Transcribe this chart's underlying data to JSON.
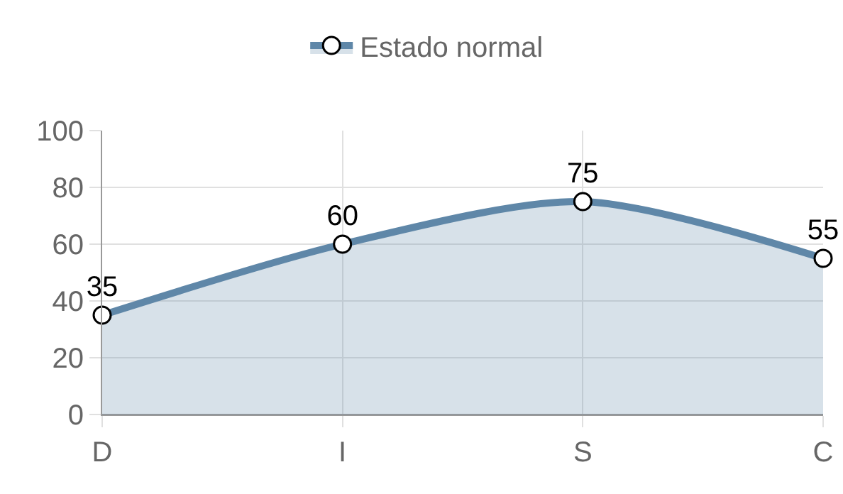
{
  "chart_data": {
    "type": "area",
    "categories": [
      "D",
      "I",
      "S",
      "C"
    ],
    "series": [
      {
        "name": "Estado normal",
        "color": "#5f87a8",
        "values": [
          35,
          60,
          75,
          55
        ]
      }
    ],
    "ylim": [
      0,
      100
    ],
    "yticks": [
      0,
      20,
      40,
      60,
      80,
      100
    ],
    "grid": true,
    "legend": "top",
    "marker": "circle",
    "data_labels": true
  }
}
